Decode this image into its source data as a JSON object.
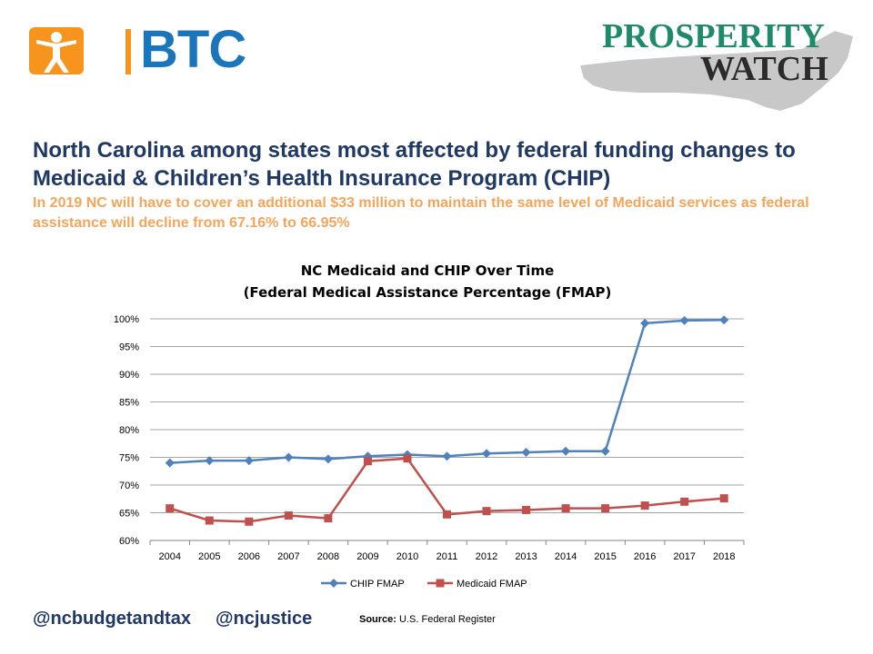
{
  "logos": {
    "btc_text": "BTC",
    "prosperity_line1": "PROSPERITY",
    "prosperity_line2": "WATCH"
  },
  "headline": "North Carolina among states most affected by federal funding changes to Medicaid & Children’s Health Insurance Program (CHIP)",
  "subheadline": "In 2019 NC will have to cover an additional $33 million to maintain the same level of Medicaid services as federal assistance will decline from 67.16% to 66.95%",
  "chart_data": {
    "type": "line",
    "title": "NC Medicaid and CHIP Over Time",
    "subtitle": "(Federal Medical Assistance Percentage (FMAP)",
    "x": [
      "2004",
      "2005",
      "2006",
      "2007",
      "2008",
      "2009",
      "2010",
      "2011",
      "2012",
      "2013",
      "2014",
      "2015",
      "2016",
      "2017",
      "2018"
    ],
    "ylim": [
      60,
      100
    ],
    "yticks": [
      60,
      65,
      70,
      75,
      80,
      85,
      90,
      95,
      100
    ],
    "ytick_labels": [
      "60%",
      "65%",
      "70%",
      "75%",
      "80%",
      "85%",
      "90%",
      "95%",
      "100%"
    ],
    "grid": true,
    "legend_position": "bottom",
    "series": [
      {
        "name": "CHIP FMAP",
        "color": "#4f81bd",
        "marker": "diamond",
        "values": [
          74.0,
          74.4,
          74.4,
          75.0,
          74.7,
          75.2,
          75.5,
          75.2,
          75.7,
          75.9,
          76.1,
          76.1,
          99.2,
          99.7,
          99.8
        ]
      },
      {
        "name": "Medicaid FMAP",
        "color": "#c0504d",
        "marker": "square",
        "values": [
          65.8,
          63.6,
          63.4,
          64.5,
          64.0,
          74.3,
          74.8,
          64.7,
          65.3,
          65.5,
          65.8,
          65.8,
          66.3,
          67.0,
          67.6
        ]
      }
    ]
  },
  "footer": {
    "handle1": "@ncbudgetandtax",
    "handle2": "@ncjustice",
    "source_label": "Source:",
    "source_text": "U.S. Federal Register"
  }
}
